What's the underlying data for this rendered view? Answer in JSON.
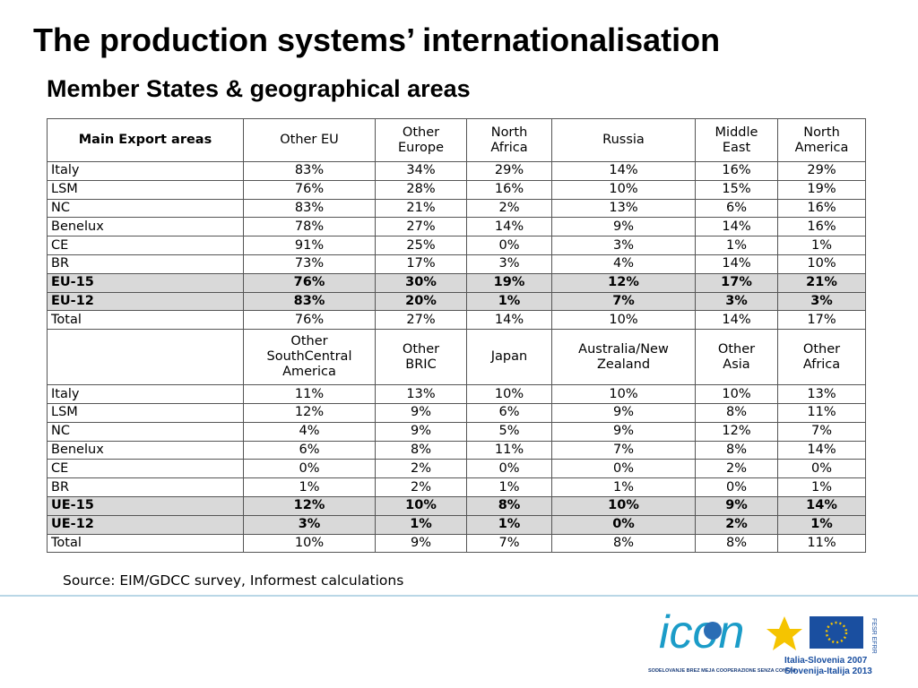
{
  "header": {
    "title": "The production systems’ internationalisation",
    "subtitle": "Member States & geographical areas"
  },
  "table": {
    "sections": [
      {
        "columns": [
          "Main Export areas",
          "Other EU",
          "Other\nEurope",
          "North\nAfrica",
          "Russia",
          "Middle\nEast",
          "North\nAmerica"
        ],
        "rows": [
          {
            "cells": [
              "Italy",
              "83%",
              "34%",
              "29%",
              "14%",
              "16%",
              "29%"
            ]
          },
          {
            "cells": [
              "LSM",
              "76%",
              "28%",
              "16%",
              "10%",
              "15%",
              "19%"
            ]
          },
          {
            "cells": [
              "NC",
              "83%",
              "21%",
              "2%",
              "13%",
              "6%",
              "16%"
            ]
          },
          {
            "cells": [
              "Benelux",
              "78%",
              "27%",
              "14%",
              "9%",
              "14%",
              "16%"
            ]
          },
          {
            "cells": [
              "CE",
              "91%",
              "25%",
              "0%",
              "3%",
              "1%",
              "1%"
            ]
          },
          {
            "cells": [
              "BR",
              "73%",
              "17%",
              "3%",
              "4%",
              "14%",
              "10%"
            ]
          },
          {
            "cells": [
              "EU-15",
              "76%",
              "30%",
              "19%",
              "12%",
              "17%",
              "21%"
            ],
            "bold": true
          },
          {
            "cells": [
              "EU-12",
              "83%",
              "20%",
              "1%",
              "7%",
              "3%",
              "3%"
            ],
            "bold": true
          },
          {
            "cells": [
              "Total",
              "76%",
              "27%",
              "14%",
              "10%",
              "14%",
              "17%"
            ]
          }
        ]
      },
      {
        "columns": [
          null,
          "Other\nSouthCentral\nAmerica",
          "Other\nBRIC",
          "Japan",
          "Australia/New\nZealand",
          "Other\nAsia",
          "Other\nAfrica"
        ],
        "rows": [
          {
            "cells": [
              "Italy",
              "11%",
              "13%",
              "10%",
              "10%",
              "10%",
              "13%"
            ]
          },
          {
            "cells": [
              "LSM",
              "12%",
              "9%",
              "6%",
              "9%",
              "8%",
              "11%"
            ]
          },
          {
            "cells": [
              "NC",
              "4%",
              "9%",
              "5%",
              "9%",
              "12%",
              "7%"
            ]
          },
          {
            "cells": [
              "Benelux",
              "6%",
              "8%",
              "11%",
              "7%",
              "8%",
              "14%"
            ]
          },
          {
            "cells": [
              "CE",
              "0%",
              "2%",
              "0%",
              "0%",
              "2%",
              "0%"
            ]
          },
          {
            "cells": [
              "BR",
              "1%",
              "2%",
              "1%",
              "1%",
              "0%",
              "1%"
            ]
          },
          {
            "cells": [
              "UE-15",
              "12%",
              "10%",
              "8%",
              "10%",
              "9%",
              "14%"
            ],
            "bold": true
          },
          {
            "cells": [
              "UE-12",
              "3%",
              "1%",
              "1%",
              "0%",
              "2%",
              "1%"
            ],
            "bold": true
          },
          {
            "cells": [
              "Total",
              "10%",
              "9%",
              "7%",
              "8%",
              "8%",
              "11%"
            ]
          }
        ]
      }
    ]
  },
  "source": "Source: EIM/GDCC survey, Informest calculations",
  "logos": {
    "icon_tagline": "SODELOVANJE BREZ MEJA  COOPERAZIONE SENZA CONFINI",
    "programme_1": "Italia-Slovenia 2007",
    "programme_2": "Slovenija-Italija 2013",
    "fund": "FESR EFRR"
  }
}
